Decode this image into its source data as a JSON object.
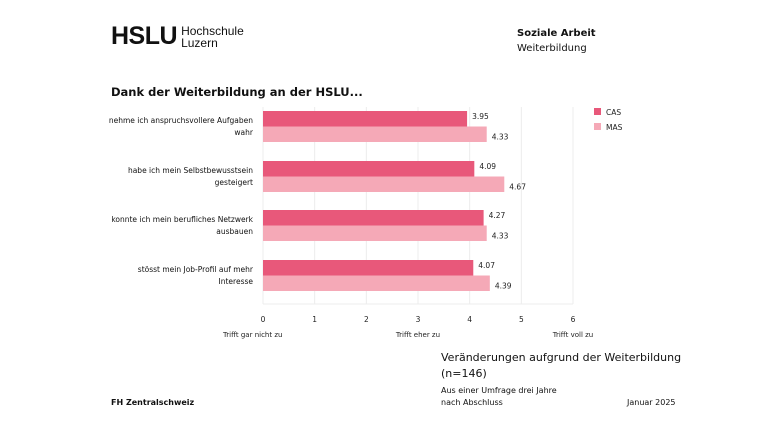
{
  "header": {
    "logo_main": "HSLU",
    "logo_sub1": "Hochschule",
    "logo_sub2": "Luzern",
    "dept": "Soziale Arbeit",
    "unit": "Weiterbildung"
  },
  "chart_data": {
    "type": "bar",
    "orientation": "horizontal",
    "title": "Dank der Weiterbildung an der HSLU...",
    "categories": [
      "nehme ich anspruchsvollere Aufgaben wahr",
      "habe ich mein Selbstbewusstsein gesteigert",
      "konnte ich mein berufliches Netzwerk ausbauen",
      "stösst mein Job-Profil auf mehr Interesse"
    ],
    "series": [
      {
        "name": "CAS",
        "values": [
          3.95,
          4.09,
          4.27,
          4.07
        ],
        "color": "#e8587a"
      },
      {
        "name": "MAS",
        "values": [
          4.33,
          4.67,
          4.33,
          4.39
        ],
        "color": "#f5a9b7"
      }
    ],
    "xlim": [
      0,
      6
    ],
    "xticks": [
      "0",
      "1",
      "2",
      "3",
      "4",
      "5",
      "6"
    ],
    "scale_labels": [
      "Trifft gar nicht zu",
      "Trifft eher zu",
      "Trifft voll zu"
    ],
    "grid": true,
    "legend": "top-right"
  },
  "caption": {
    "heading": "Veränderungen aufgrund der Weiterbildung",
    "n": "(n=146)",
    "line1": "Aus einer Umfrage drei Jahre",
    "line2": "nach Abschluss"
  },
  "footer": {
    "left": "FH Zentralschweiz",
    "right": "Januar 2025"
  }
}
